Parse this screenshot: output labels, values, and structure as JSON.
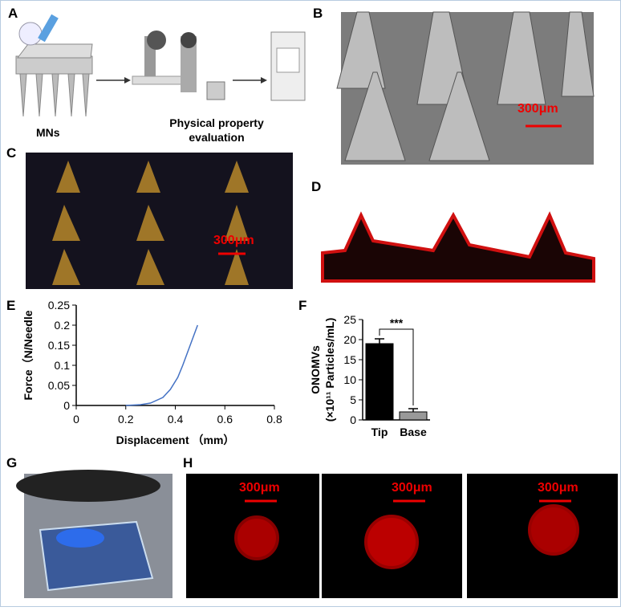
{
  "figure": {
    "panel_labels": [
      "A",
      "B",
      "C",
      "D",
      "E",
      "F",
      "G",
      "H"
    ],
    "a_texts": [
      "MNs",
      "Physical property",
      "evaluation"
    ],
    "scale_labels": [
      "300μm",
      "300μm",
      "300μm",
      "300μm",
      "300μm"
    ]
  },
  "chart_data": [
    {
      "type": "line",
      "y_label": "Force（N/Needle",
      "x_label": "Displacement （mm）",
      "xlim": [
        0,
        0.8
      ],
      "ylim": [
        0,
        0.25
      ],
      "xticks": [
        0,
        0.2,
        0.4,
        0.6,
        0.8
      ],
      "yticks": [
        0,
        0.05,
        0.1,
        0.15,
        0.2,
        0.25
      ],
      "series": [
        {
          "color": "#4472c4",
          "x": [
            0.2,
            0.26,
            0.3,
            0.35,
            0.38,
            0.41,
            0.43,
            0.46,
            0.49
          ],
          "values": [
            0,
            0.002,
            0.006,
            0.02,
            0.04,
            0.07,
            0.1,
            0.15,
            0.2
          ]
        }
      ]
    },
    {
      "type": "bar",
      "y_label": [
        "ONOMVs",
        "(×10¹¹ Particles/mL)"
      ],
      "categories": [
        "Tip",
        "Base"
      ],
      "values": [
        19,
        2
      ],
      "errors": [
        1.2,
        0.8
      ],
      "colors": [
        "#000000",
        "#999999"
      ],
      "annotation": "***",
      "ylim": [
        0,
        25
      ],
      "yticks": [
        0,
        5,
        10,
        15,
        20,
        25
      ]
    }
  ]
}
